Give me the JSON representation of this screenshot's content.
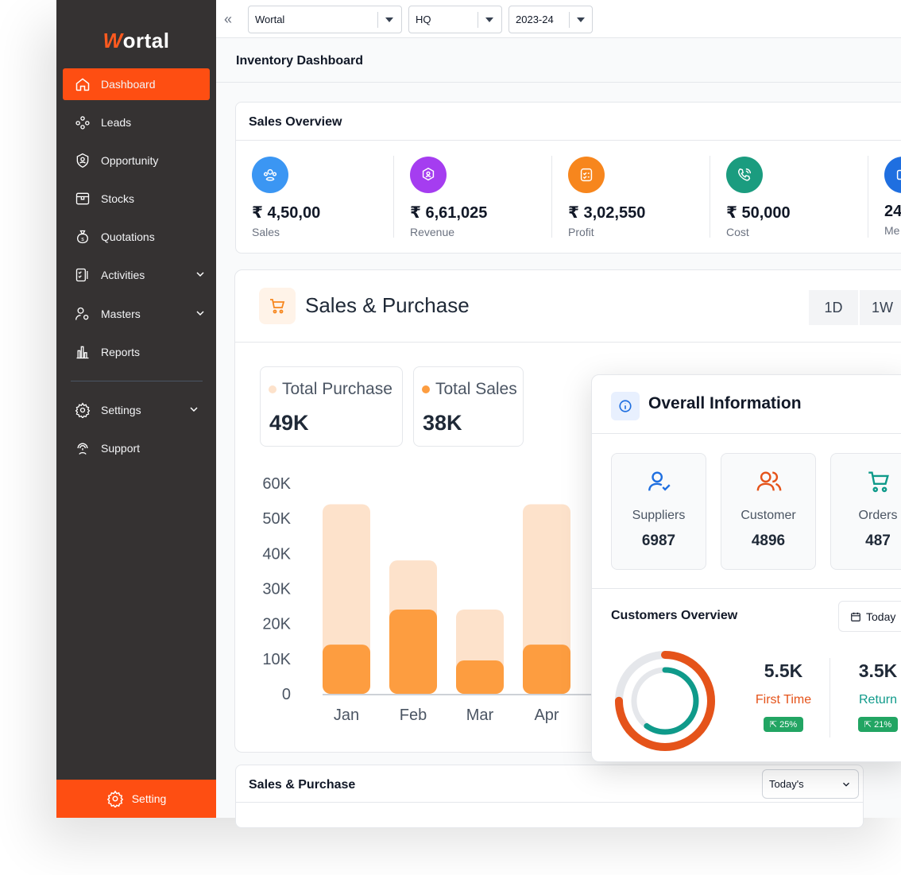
{
  "app": {
    "logo_text": "ortal",
    "logo_initial": "W"
  },
  "sidebar": {
    "items": [
      {
        "label": "Dashboard",
        "icon": "home-icon"
      },
      {
        "label": "Leads",
        "icon": "leads-icon"
      },
      {
        "label": "Opportunity",
        "icon": "opportunity-icon"
      },
      {
        "label": "Stocks",
        "icon": "stocks-icon"
      },
      {
        "label": "Quotations",
        "icon": "money-bag-icon"
      },
      {
        "label": "Activities",
        "icon": "checklist-icon"
      },
      {
        "label": "Masters",
        "icon": "user-gear-icon"
      },
      {
        "label": "Reports",
        "icon": "bar-chart-icon"
      },
      {
        "label": "Settings",
        "icon": "gear-icon"
      },
      {
        "label": "Support",
        "icon": "support-icon"
      }
    ],
    "setting_label": "Setting"
  },
  "topbar": {
    "company": "Wortal",
    "branch": "HQ",
    "year": "2023-24"
  },
  "page": {
    "title": "Inventory Dashboard"
  },
  "sales_overview": {
    "title": "Sales Overview",
    "stats": [
      {
        "value": "₹ 4,50,00",
        "label": "Sales",
        "color": "#3b96f3"
      },
      {
        "value": "₹ 6,61,025",
        "label": "Revenue",
        "color": "#a53df0"
      },
      {
        "value": "₹ 3,02,550",
        "label": "Profit",
        "color": "#f7861d"
      },
      {
        "value": "₹ 50,000",
        "label": "Cost",
        "color": "#1b9c7f"
      },
      {
        "value": "24",
        "label": "Me",
        "color": "#1f6fe0"
      }
    ]
  },
  "sales_purchase": {
    "title": "Sales & Purchase",
    "ranges": [
      "1D",
      "1W"
    ],
    "total_purchase_label": "Total Purchase",
    "total_purchase_value": "49K",
    "total_sales_label": "Total Sales",
    "total_sales_value": "38K",
    "colors": {
      "purchase": "#fde2cb",
      "sales": "#fd9d40"
    }
  },
  "chart_data": {
    "type": "bar",
    "categories": [
      "Jan",
      "Feb",
      "Mar",
      "Apr"
    ],
    "series": [
      {
        "name": "Total Purchase",
        "values": [
          54000,
          38000,
          24000,
          54000
        ]
      },
      {
        "name": "Total Sales",
        "values": [
          14000,
          24000,
          9500,
          14000
        ]
      }
    ],
    "yticks": [
      "0",
      "10K",
      "20K",
      "30K",
      "40K",
      "50K",
      "60K"
    ],
    "ylim": [
      0,
      60000
    ],
    "stacked": false
  },
  "overall": {
    "title": "Overall Information",
    "cards": [
      {
        "label": "Suppliers",
        "value": "6987",
        "icon": "user-check-icon"
      },
      {
        "label": "Customer",
        "value": "4896",
        "icon": "users-icon"
      },
      {
        "label": "Orders",
        "value": "487",
        "icon": "cart-icon"
      }
    ],
    "customers_title": "Customers Overview",
    "today_label": "Today",
    "first_time_value": "5.5K",
    "first_time_label": "First Time",
    "first_time_badge": "⇱ 25%",
    "return_value": "3.5K",
    "return_label": "Return",
    "return_badge": "⇱ 21%",
    "donut": {
      "first_time_fraction": 0.75,
      "return_fraction": 0.6,
      "first_color": "#e5531a",
      "return_color": "#0f9a8a"
    }
  },
  "bottom": {
    "title": "Sales & Purchase",
    "select_value": "Today's"
  }
}
